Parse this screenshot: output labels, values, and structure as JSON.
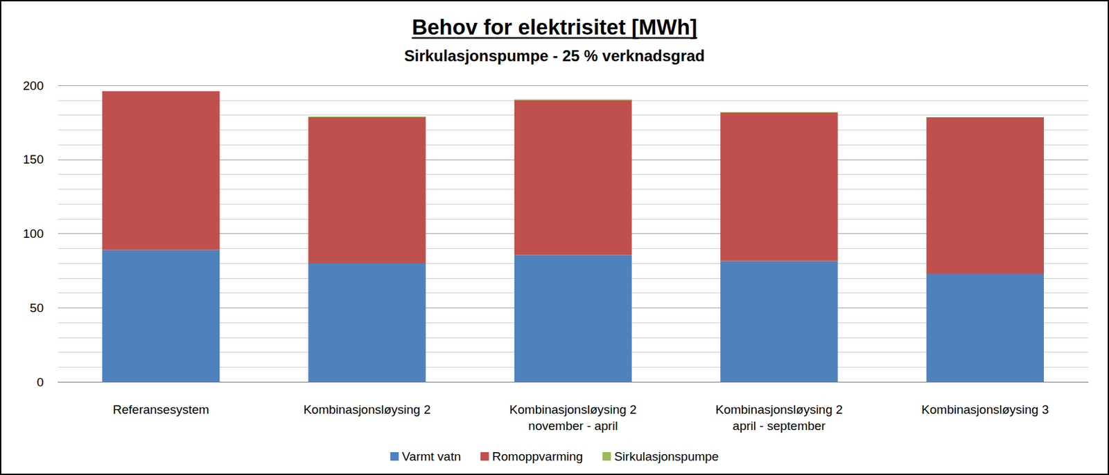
{
  "chart_data": {
    "type": "bar",
    "stacked": true,
    "title": "Behov for elektrisitet [MWh]",
    "subtitle": "Sirkulasjonspumpe - 25 % verknadsgrad",
    "categories": [
      "Referansesystem",
      "Kombinasjonsløysing 2",
      "Kombinasjonsløysing 2\nnovember - april",
      "Kombinasjonsløysing 2\napril - september",
      "Kombinasjonsløysing 3"
    ],
    "series": [
      {
        "name": "Varmt vatn",
        "color": "#4f81bd",
        "values": [
          89,
          80,
          85.5,
          81.5,
          73
        ]
      },
      {
        "name": "Romoppvarming",
        "color": "#c0504d",
        "values": [
          107,
          98.5,
          104.5,
          100,
          105.5
        ]
      },
      {
        "name": "Sirkulasjonspumpe",
        "color": "#9bbb59",
        "values": [
          0,
          0.5,
          0.5,
          0.5,
          0
        ]
      }
    ],
    "ylim": [
      0,
      200
    ],
    "yticks": [
      0,
      50,
      100,
      150,
      200
    ],
    "grid": true,
    "legend": "bottom"
  }
}
